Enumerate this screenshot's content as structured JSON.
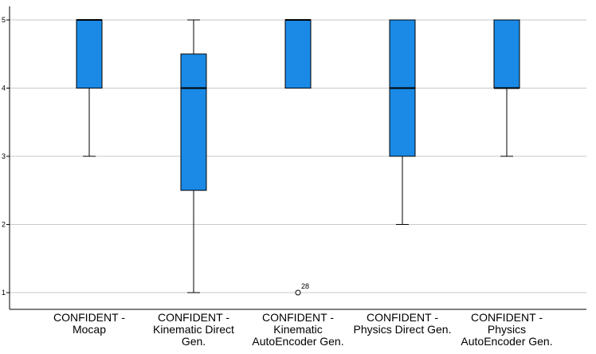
{
  "chart_data": {
    "type": "boxplot",
    "title": "",
    "xlabel": "",
    "ylabel": "",
    "ylim": [
      1,
      5
    ],
    "yticks": [
      1,
      2,
      3,
      4,
      5
    ],
    "grid": "horizontal",
    "colors": {
      "box": "#1a8ae6",
      "line": "#000000",
      "grid": "#c9c9c9"
    },
    "categories": [
      [
        "CONFIDENT -",
        "Mocap"
      ],
      [
        "CONFIDENT -",
        "Kinematic Direct",
        "Gen."
      ],
      [
        "CONFIDENT -",
        "Kinematic",
        "AutoEncoder Gen."
      ],
      [
        "CONFIDENT -",
        "Physics Direct Gen."
      ],
      [
        "CONFIDENT -",
        "Physics",
        "AutoEncoder Gen."
      ]
    ],
    "boxes": [
      {
        "min": 3,
        "q1": 4,
        "median": 5,
        "q3": 5,
        "max": 5,
        "outliers": []
      },
      {
        "min": 1,
        "q1": 2.5,
        "median": 4,
        "q3": 4.5,
        "max": 5,
        "outliers": []
      },
      {
        "min": 4,
        "q1": 4,
        "median": 5,
        "q3": 5,
        "max": 5,
        "outliers": [
          {
            "value": 1,
            "label": "28"
          }
        ]
      },
      {
        "min": 2,
        "q1": 3,
        "median": 4,
        "q3": 5,
        "max": 5,
        "outliers": []
      },
      {
        "min": 3,
        "q1": 4,
        "median": 4,
        "q3": 5,
        "max": 5,
        "outliers": []
      }
    ]
  }
}
